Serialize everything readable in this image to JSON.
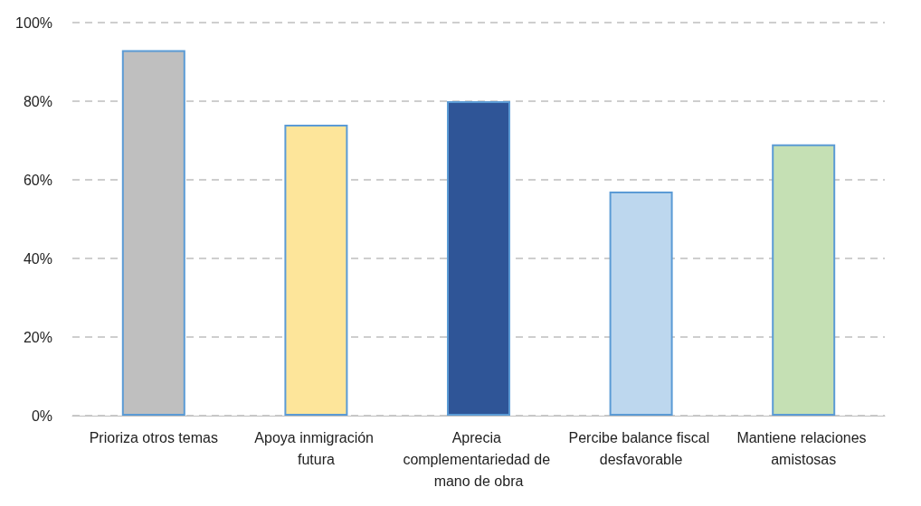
{
  "chart_data": {
    "type": "bar",
    "categories": [
      "Prioriza otros temas",
      "Apoya inmigración futura",
      "Aprecia complementariedad de mano de obra",
      "Percibe balance fiscal desfavorable",
      "Mantiene relaciones amistosas"
    ],
    "values": [
      93,
      74,
      80,
      57,
      69
    ],
    "colors": [
      "#bfbfbf",
      "#fde59a",
      "#2f5597",
      "#bdd7ee",
      "#c5e0b4"
    ],
    "ylim": [
      0,
      100
    ],
    "yticks": [
      {
        "value": 0,
        "label": "0%"
      },
      {
        "value": 20,
        "label": "20%"
      },
      {
        "value": 40,
        "label": "40%"
      },
      {
        "value": 60,
        "label": "60%"
      },
      {
        "value": 80,
        "label": "80%"
      },
      {
        "value": 100,
        "label": "100%"
      }
    ],
    "grid": "y"
  }
}
